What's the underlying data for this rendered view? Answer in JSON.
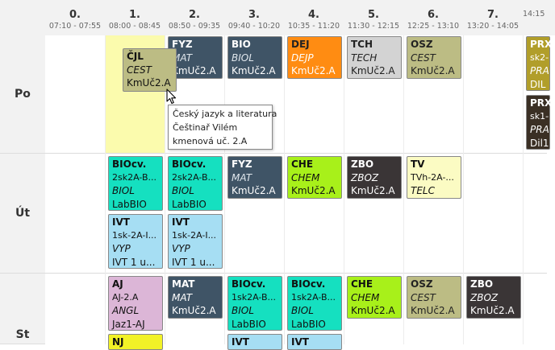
{
  "periods": [
    {
      "num": "0.",
      "time": "07:10 - 07:55"
    },
    {
      "num": "1.",
      "time": "08:00 - 08:45"
    },
    {
      "num": "2.",
      "time": "08:50 - 09:35"
    },
    {
      "num": "3.",
      "time": "09:40 - 10:20"
    },
    {
      "num": "4.",
      "time": "10:35 - 11:20"
    },
    {
      "num": "5.",
      "time": "11:30 - 12:15"
    },
    {
      "num": "6.",
      "time": "12:25 - 13:10"
    },
    {
      "num": "7.",
      "time": "13:20 - 14:05"
    },
    {
      "num": "",
      "time": "14:15"
    }
  ],
  "days": [
    "Po",
    "Út",
    "St"
  ],
  "lessons": {
    "po_fyz": {
      "subject": "FYZ",
      "teacher": "MAT",
      "room": "KmUč2.A"
    },
    "po_cjl": {
      "subject": "ČJL",
      "teacher": "CEST",
      "room": "KmUč2.A"
    },
    "po_bio": {
      "subject": "BIO",
      "teacher": "BIOL",
      "room": "KmUč2.A"
    },
    "po_dej": {
      "subject": "DEJ",
      "teacher": "DEJP",
      "room": "KmUč2.A"
    },
    "po_tch": {
      "subject": "TCH",
      "teacher": "TECH",
      "room": "KmUč2.A"
    },
    "po_osz": {
      "subject": "OSZ",
      "teacher": "CEST",
      "room": "KmUč2.A"
    },
    "po_prx1": {
      "subject": "PRX",
      "group": "sk2-",
      "teacher": "PRA",
      "room": "DIL"
    },
    "po_prx2": {
      "subject": "PRX",
      "group": "sk1-",
      "teacher": "PRA",
      "room": "Dil1"
    },
    "ut_bioc1": {
      "subject": "BIOcv.",
      "group": "2sk2A-B...",
      "teacher": "BIOL",
      "room": "LabBIO"
    },
    "ut_bioc2": {
      "subject": "BIOcv.",
      "group": "2sk2A-B...",
      "teacher": "BIOL",
      "room": "LabBIO"
    },
    "ut_fyz": {
      "subject": "FYZ",
      "teacher": "MAT",
      "room": "KmUč2.A"
    },
    "ut_che": {
      "subject": "CHE",
      "teacher": "CHEM",
      "room": "KmUč2.A"
    },
    "ut_zbo": {
      "subject": "ZBO",
      "teacher": "ZBOZ",
      "room": "KmUč2.A"
    },
    "ut_tv": {
      "subject": "TV",
      "group": "TVh-2A-...",
      "teacher": "TELC"
    },
    "ut_ivt1": {
      "subject": "IVT",
      "group": "1sk-2A-I...",
      "teacher": "VYP",
      "room": "IVT 1 u..."
    },
    "ut_ivt2": {
      "subject": "IVT",
      "group": "1sk-2A-I...",
      "teacher": "VYP",
      "room": "IVT 1 u..."
    },
    "st_aj": {
      "subject": "AJ",
      "group": "AJ-2.A",
      "teacher": "ANGL",
      "room": "Jaz1-AJ"
    },
    "st_nj": {
      "subject": "NJ"
    },
    "st_mat": {
      "subject": "MAT",
      "teacher": "MAT",
      "room": "KmUč2.A"
    },
    "st_bioc1": {
      "subject": "BIOcv.",
      "group": "1sk2A-B...",
      "teacher": "BIOL",
      "room": "LabBIO"
    },
    "st_bioc2": {
      "subject": "BIOcv.",
      "group": "1sk2A-B...",
      "teacher": "BIOL",
      "room": "LabBIO"
    },
    "st_ivt1": {
      "subject": "IVT"
    },
    "st_ivt2": {
      "subject": "IVT"
    },
    "st_che": {
      "subject": "CHE",
      "teacher": "CHEM",
      "room": "KmUč2.A"
    },
    "st_osz": {
      "subject": "OSZ",
      "teacher": "CEST",
      "room": "KmUč2.A"
    },
    "st_zbo": {
      "subject": "ZBO",
      "teacher": "ZBOZ",
      "room": "KmUč2.A"
    }
  },
  "tooltip": {
    "line1": "Český jazyk a literatura",
    "line2": "Češtinař Vilém",
    "line3": "kmenová uč. 2.A"
  },
  "colors": {
    "highlight": "#fbfbad",
    "fyz": "#3f5466",
    "bio": "#15e0c0",
    "dej": "#ff8c12",
    "che": "#a8f01a",
    "zbo": "#3a3536",
    "ivt": "#a6def3",
    "aj": "#dcb6d7",
    "nj": "#f2f227",
    "osz": "#bcbc84"
  },
  "icons": {
    "cursor": "mouse-pointer-icon"
  }
}
